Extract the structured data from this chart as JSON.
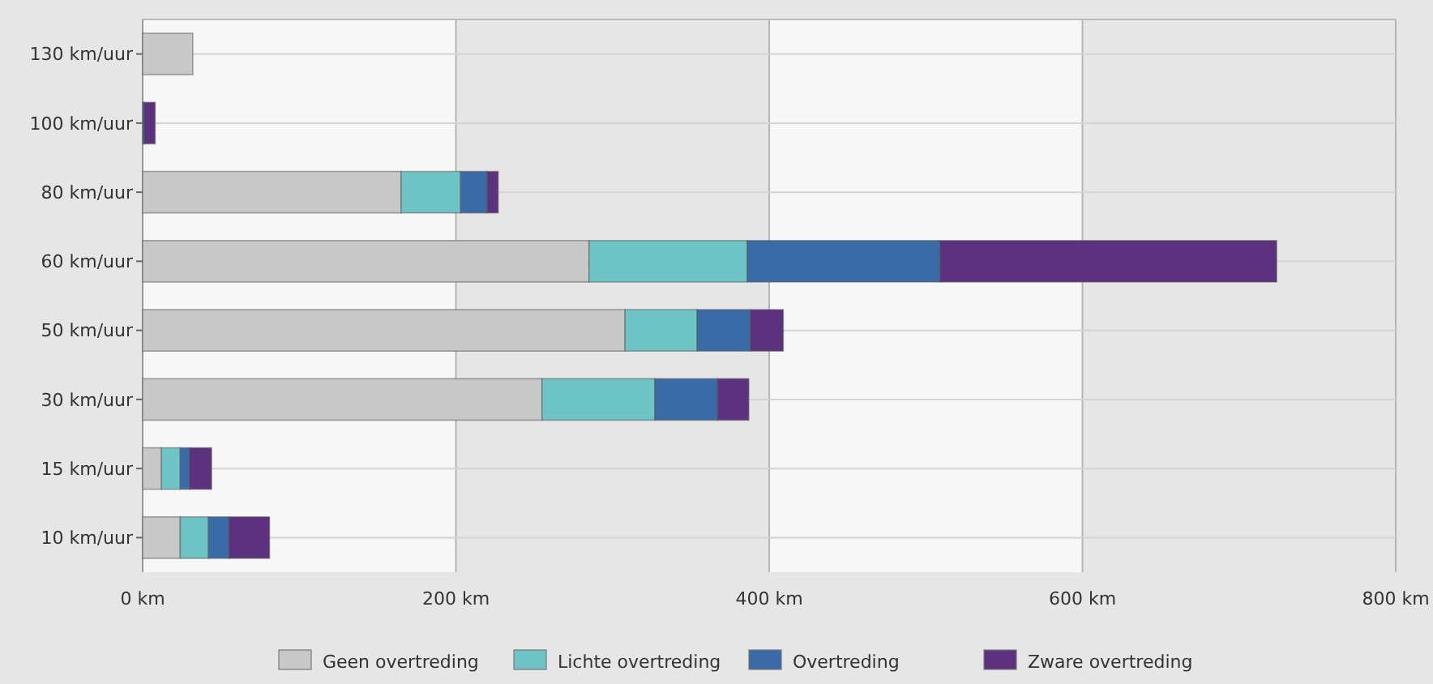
{
  "chart_data": {
    "type": "bar",
    "orientation": "horizontal",
    "stacked": true,
    "categories": [
      "130 km/uur",
      "100 km/uur",
      "80 km/uur",
      "60 km/uur",
      "50 km/uur",
      "30 km/uur",
      "15 km/uur",
      "10 km/uur"
    ],
    "series": [
      {
        "name": "Geen overtreding",
        "color": "#c8c8c8",
        "values": [
          32,
          0,
          165,
          285,
          308,
          255,
          12,
          24
        ]
      },
      {
        "name": "Lichte overtreding",
        "color": "#6fc4c6",
        "values": [
          0,
          0,
          38,
          101,
          46,
          72,
          12,
          18
        ]
      },
      {
        "name": "Overtreding",
        "color": "#3a6ba6",
        "values": [
          0,
          1,
          17,
          123,
          34,
          40,
          6,
          13
        ]
      },
      {
        "name": "Zware overtreding",
        "color": "#5c327e",
        "values": [
          0,
          7,
          7,
          215,
          21,
          20,
          14,
          26
        ]
      }
    ],
    "xlim": [
      0,
      800
    ],
    "xticks": [
      {
        "value": 0,
        "label": "0 km"
      },
      {
        "value": 200,
        "label": "200 km"
      },
      {
        "value": 400,
        "label": "400 km"
      },
      {
        "value": 600,
        "label": "600 km"
      },
      {
        "value": 800,
        "label": "800 km"
      }
    ],
    "grid": true,
    "legend": "bottom"
  }
}
